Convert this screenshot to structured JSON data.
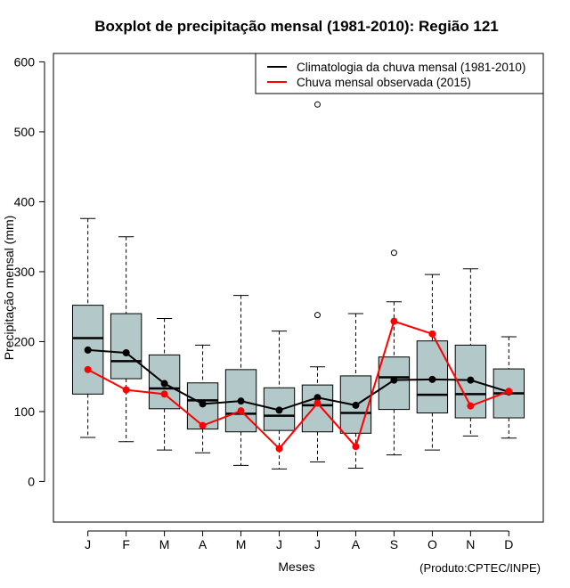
{
  "chart_data": {
    "type": "boxplot",
    "title": "Boxplot de precipitação mensal (1981-2010): Região 121",
    "xlabel": "Meses",
    "ylabel": "Precipitação mensal (mm)",
    "credit": "(Produto:CPTEC/INPE)",
    "ylim": [
      -58,
      612
    ],
    "yticks": [
      0,
      100,
      200,
      300,
      400,
      500,
      600
    ],
    "categories": [
      "J",
      "F",
      "M",
      "A",
      "M",
      "J",
      "J",
      "A",
      "S",
      "O",
      "N",
      "D"
    ],
    "boxes": [
      {
        "min": 63,
        "q1": 125,
        "median": 205,
        "q3": 252,
        "max": 376,
        "outliers": []
      },
      {
        "min": 57,
        "q1": 147,
        "median": 172,
        "q3": 240,
        "max": 350,
        "outliers": []
      },
      {
        "min": 45,
        "q1": 104,
        "median": 133,
        "q3": 181,
        "max": 233,
        "outliers": []
      },
      {
        "min": 41,
        "q1": 75,
        "median": 116,
        "q3": 141,
        "max": 195,
        "outliers": []
      },
      {
        "min": 23,
        "q1": 71,
        "median": 97,
        "q3": 160,
        "max": 266,
        "outliers": []
      },
      {
        "min": 18,
        "q1": 73,
        "median": 94,
        "q3": 134,
        "max": 215,
        "outliers": []
      },
      {
        "min": 28,
        "q1": 71,
        "median": 109,
        "q3": 138,
        "max": 164,
        "outliers": [
          238,
          539
        ]
      },
      {
        "min": 19,
        "q1": 69,
        "median": 98,
        "q3": 151,
        "max": 240,
        "outliers": []
      },
      {
        "min": 38,
        "q1": 103,
        "median": 149,
        "q3": 178,
        "max": 257,
        "outliers": [
          327
        ]
      },
      {
        "min": 45,
        "q1": 98,
        "median": 124,
        "q3": 201,
        "max": 296,
        "outliers": []
      },
      {
        "min": 65,
        "q1": 91,
        "median": 125,
        "q3": 195,
        "max": 304,
        "outliers": []
      },
      {
        "min": 62,
        "q1": 91,
        "median": 126,
        "q3": 161,
        "max": 207,
        "outliers": []
      }
    ],
    "series": [
      {
        "name": "Climatologia da chuva mensal (1981-2010)",
        "color": "#000000",
        "values": [
          188,
          184,
          140,
          111,
          115,
          102,
          120,
          109,
          145,
          146,
          145,
          128
        ]
      },
      {
        "name": "Chuva mensal observada (2015)",
        "color": "#ff0000",
        "values": [
          160,
          131,
          125,
          80,
          101,
          47,
          112,
          50,
          229,
          211,
          108,
          129
        ]
      }
    ],
    "box_color": "#b3c8c8",
    "legend_position": "top-right"
  }
}
